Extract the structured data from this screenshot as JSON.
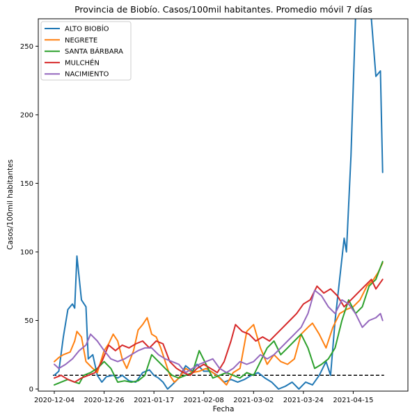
{
  "chart_data": {
    "type": "line",
    "title": "Provincia de Biobío. Casos/100mil habitantes. Promedio móvil 7 días",
    "xlabel": "Fecha",
    "ylabel": "Casos/100mil habitantes",
    "xlim": [
      "2020-12-04",
      "2021-05-03"
    ],
    "ylim": [
      0,
      270
    ],
    "x_ticks": [
      "2020-12-04",
      "2020-12-26",
      "2021-01-17",
      "2021-02-08",
      "2021-03-02",
      "2021-03-24",
      "2021-04-15"
    ],
    "y_ticks": [
      0,
      50,
      100,
      150,
      200,
      250
    ],
    "grid": false,
    "legend_position": "top-left",
    "reference_line": {
      "y": 10,
      "style": "dashed",
      "color": "#000000"
    },
    "series": [
      {
        "name": "ALTO BIOBÍO",
        "color": "#1f77b4",
        "points": [
          [
            "2020-12-04",
            10
          ],
          [
            "2020-12-06",
            13
          ],
          [
            "2020-12-08",
            38
          ],
          [
            "2020-12-10",
            58
          ],
          [
            "2020-12-12",
            62
          ],
          [
            "2020-12-13",
            59
          ],
          [
            "2020-12-14",
            97
          ],
          [
            "2020-12-16",
            65
          ],
          [
            "2020-12-18",
            60
          ],
          [
            "2020-12-19",
            22
          ],
          [
            "2020-12-21",
            25
          ],
          [
            "2020-12-23",
            10
          ],
          [
            "2020-12-25",
            5
          ],
          [
            "2020-12-27",
            9
          ],
          [
            "2020-12-30",
            10
          ],
          [
            "2021-01-01",
            8
          ],
          [
            "2021-01-03",
            10
          ],
          [
            "2021-01-06",
            6
          ],
          [
            "2021-01-09",
            5
          ],
          [
            "2021-01-12",
            12
          ],
          [
            "2021-01-15",
            14
          ],
          [
            "2021-01-17",
            10
          ],
          [
            "2021-01-19",
            8
          ],
          [
            "2021-01-21",
            5
          ],
          [
            "2021-01-23",
            0
          ],
          [
            "2021-01-25",
            3
          ],
          [
            "2021-01-28",
            8
          ],
          [
            "2021-01-31",
            17
          ],
          [
            "2021-02-03",
            13
          ],
          [
            "2021-02-05",
            18
          ],
          [
            "2021-02-08",
            13
          ],
          [
            "2021-02-11",
            13
          ],
          [
            "2021-02-14",
            10
          ],
          [
            "2021-02-17",
            5
          ],
          [
            "2021-02-20",
            7
          ],
          [
            "2021-02-23",
            5
          ],
          [
            "2021-02-26",
            7
          ],
          [
            "2021-03-01",
            10
          ],
          [
            "2021-03-04",
            12
          ],
          [
            "2021-03-07",
            8
          ],
          [
            "2021-03-10",
            5
          ],
          [
            "2021-03-13",
            0
          ],
          [
            "2021-03-16",
            2
          ],
          [
            "2021-03-19",
            5
          ],
          [
            "2021-03-22",
            0
          ],
          [
            "2021-03-25",
            5
          ],
          [
            "2021-03-28",
            3
          ],
          [
            "2021-03-31",
            10
          ],
          [
            "2021-04-03",
            20
          ],
          [
            "2021-04-05",
            10
          ],
          [
            "2021-04-07",
            50
          ],
          [
            "2021-04-09",
            80
          ],
          [
            "2021-04-11",
            110
          ],
          [
            "2021-04-12",
            100
          ],
          [
            "2021-04-14",
            170
          ],
          [
            "2021-04-16",
            270
          ],
          [
            "2021-04-20",
            275
          ],
          [
            "2021-04-23",
            270
          ],
          [
            "2021-04-25",
            228
          ],
          [
            "2021-04-27",
            232
          ],
          [
            "2021-04-28",
            158
          ]
        ]
      },
      {
        "name": "NEGRETE",
        "color": "#ff7f0e",
        "points": [
          [
            "2020-12-04",
            20
          ],
          [
            "2020-12-06",
            23
          ],
          [
            "2020-12-08",
            25
          ],
          [
            "2020-12-11",
            27
          ],
          [
            "2020-12-13",
            35
          ],
          [
            "2020-12-14",
            42
          ],
          [
            "2020-12-16",
            38
          ],
          [
            "2020-12-18",
            20
          ],
          [
            "2020-12-21",
            15
          ],
          [
            "2020-12-23",
            12
          ],
          [
            "2020-12-26",
            28
          ],
          [
            "2020-12-28",
            33
          ],
          [
            "2020-12-30",
            40
          ],
          [
            "2021-01-01",
            35
          ],
          [
            "2021-01-03",
            22
          ],
          [
            "2021-01-05",
            15
          ],
          [
            "2021-01-08",
            28
          ],
          [
            "2021-01-10",
            43
          ],
          [
            "2021-01-12",
            47
          ],
          [
            "2021-01-14",
            52
          ],
          [
            "2021-01-16",
            40
          ],
          [
            "2021-01-18",
            38
          ],
          [
            "2021-01-20",
            30
          ],
          [
            "2021-01-22",
            20
          ],
          [
            "2021-01-24",
            10
          ],
          [
            "2021-01-26",
            5
          ],
          [
            "2021-01-28",
            8
          ],
          [
            "2021-01-31",
            15
          ],
          [
            "2021-02-03",
            12
          ],
          [
            "2021-02-06",
            13
          ],
          [
            "2021-02-09",
            15
          ],
          [
            "2021-02-12",
            12
          ],
          [
            "2021-02-15",
            8
          ],
          [
            "2021-02-18",
            3
          ],
          [
            "2021-02-21",
            12
          ],
          [
            "2021-02-24",
            15
          ],
          [
            "2021-02-27",
            42
          ],
          [
            "2021-03-02",
            47
          ],
          [
            "2021-03-05",
            30
          ],
          [
            "2021-03-08",
            18
          ],
          [
            "2021-03-11",
            25
          ],
          [
            "2021-03-14",
            20
          ],
          [
            "2021-03-17",
            18
          ],
          [
            "2021-03-20",
            22
          ],
          [
            "2021-03-23",
            40
          ],
          [
            "2021-03-26",
            45
          ],
          [
            "2021-03-28",
            48
          ],
          [
            "2021-03-31",
            40
          ],
          [
            "2021-04-03",
            30
          ],
          [
            "2021-04-06",
            45
          ],
          [
            "2021-04-09",
            55
          ],
          [
            "2021-04-12",
            58
          ],
          [
            "2021-04-15",
            60
          ],
          [
            "2021-04-18",
            65
          ],
          [
            "2021-04-21",
            75
          ],
          [
            "2021-04-24",
            80
          ],
          [
            "2021-04-26",
            85
          ],
          [
            "2021-04-28",
            92
          ]
        ]
      },
      {
        "name": "SANTA BÁRBARA",
        "color": "#2ca02c",
        "points": [
          [
            "2020-12-04",
            3
          ],
          [
            "2020-12-07",
            5
          ],
          [
            "2020-12-10",
            7
          ],
          [
            "2020-12-13",
            5
          ],
          [
            "2020-12-15",
            4
          ],
          [
            "2020-12-17",
            10
          ],
          [
            "2020-12-20",
            12
          ],
          [
            "2020-12-23",
            15
          ],
          [
            "2020-12-26",
            20
          ],
          [
            "2020-12-29",
            15
          ],
          [
            "2021-01-01",
            5
          ],
          [
            "2021-01-04",
            6
          ],
          [
            "2021-01-07",
            5
          ],
          [
            "2021-01-10",
            6
          ],
          [
            "2021-01-13",
            10
          ],
          [
            "2021-01-16",
            25
          ],
          [
            "2021-01-19",
            20
          ],
          [
            "2021-01-22",
            15
          ],
          [
            "2021-01-25",
            10
          ],
          [
            "2021-01-28",
            8
          ],
          [
            "2021-01-31",
            10
          ],
          [
            "2021-02-03",
            12
          ],
          [
            "2021-02-06",
            28
          ],
          [
            "2021-02-09",
            18
          ],
          [
            "2021-02-12",
            8
          ],
          [
            "2021-02-15",
            10
          ],
          [
            "2021-02-18",
            12
          ],
          [
            "2021-02-21",
            10
          ],
          [
            "2021-02-24",
            8
          ],
          [
            "2021-02-27",
            12
          ],
          [
            "2021-03-02",
            10
          ],
          [
            "2021-03-05",
            20
          ],
          [
            "2021-03-08",
            30
          ],
          [
            "2021-03-11",
            35
          ],
          [
            "2021-03-14",
            25
          ],
          [
            "2021-03-17",
            30
          ],
          [
            "2021-03-20",
            35
          ],
          [
            "2021-03-23",
            40
          ],
          [
            "2021-03-26",
            30
          ],
          [
            "2021-03-29",
            15
          ],
          [
            "2021-04-01",
            18
          ],
          [
            "2021-04-04",
            22
          ],
          [
            "2021-04-07",
            30
          ],
          [
            "2021-04-10",
            50
          ],
          [
            "2021-04-13",
            65
          ],
          [
            "2021-04-16",
            55
          ],
          [
            "2021-04-19",
            60
          ],
          [
            "2021-04-22",
            75
          ],
          [
            "2021-04-25",
            80
          ],
          [
            "2021-04-28",
            93
          ]
        ]
      },
      {
        "name": "MULCHÉN",
        "color": "#d62728",
        "points": [
          [
            "2020-12-04",
            8
          ],
          [
            "2020-12-07",
            10
          ],
          [
            "2020-12-10",
            7
          ],
          [
            "2020-12-13",
            5
          ],
          [
            "2020-12-16",
            8
          ],
          [
            "2020-12-19",
            10
          ],
          [
            "2020-12-22",
            12
          ],
          [
            "2020-12-25",
            20
          ],
          [
            "2020-12-28",
            32
          ],
          [
            "2020-12-31",
            28
          ],
          [
            "2021-01-03",
            32
          ],
          [
            "2021-01-06",
            30
          ],
          [
            "2021-01-09",
            33
          ],
          [
            "2021-01-12",
            35
          ],
          [
            "2021-01-15",
            30
          ],
          [
            "2021-01-18",
            35
          ],
          [
            "2021-01-21",
            33
          ],
          [
            "2021-01-24",
            20
          ],
          [
            "2021-01-27",
            15
          ],
          [
            "2021-01-30",
            12
          ],
          [
            "2021-02-02",
            10
          ],
          [
            "2021-02-05",
            15
          ],
          [
            "2021-02-08",
            18
          ],
          [
            "2021-02-11",
            15
          ],
          [
            "2021-02-14",
            12
          ],
          [
            "2021-02-17",
            20
          ],
          [
            "2021-02-20",
            35
          ],
          [
            "2021-02-22",
            47
          ],
          [
            "2021-02-25",
            42
          ],
          [
            "2021-02-28",
            40
          ],
          [
            "2021-03-03",
            35
          ],
          [
            "2021-03-06",
            38
          ],
          [
            "2021-03-09",
            35
          ],
          [
            "2021-03-12",
            40
          ],
          [
            "2021-03-15",
            45
          ],
          [
            "2021-03-18",
            50
          ],
          [
            "2021-03-21",
            55
          ],
          [
            "2021-03-24",
            62
          ],
          [
            "2021-03-27",
            65
          ],
          [
            "2021-03-30",
            75
          ],
          [
            "2021-04-02",
            70
          ],
          [
            "2021-04-05",
            73
          ],
          [
            "2021-04-08",
            68
          ],
          [
            "2021-04-11",
            60
          ],
          [
            "2021-04-14",
            65
          ],
          [
            "2021-04-17",
            70
          ],
          [
            "2021-04-20",
            75
          ],
          [
            "2021-04-23",
            80
          ],
          [
            "2021-04-25",
            73
          ],
          [
            "2021-04-28",
            80
          ]
        ]
      },
      {
        "name": "NACIMIENTO",
        "color": "#9467bd",
        "points": [
          [
            "2020-12-04",
            18
          ],
          [
            "2020-12-06",
            15
          ],
          [
            "2020-12-09",
            18
          ],
          [
            "2020-12-12",
            22
          ],
          [
            "2020-12-15",
            28
          ],
          [
            "2020-12-18",
            32
          ],
          [
            "2020-12-20",
            40
          ],
          [
            "2020-12-23",
            35
          ],
          [
            "2020-12-26",
            28
          ],
          [
            "2020-12-29",
            22
          ],
          [
            "2021-01-01",
            20
          ],
          [
            "2021-01-04",
            22
          ],
          [
            "2021-01-07",
            25
          ],
          [
            "2021-01-10",
            28
          ],
          [
            "2021-01-13",
            30
          ],
          [
            "2021-01-16",
            30
          ],
          [
            "2021-01-19",
            25
          ],
          [
            "2021-01-22",
            22
          ],
          [
            "2021-01-25",
            20
          ],
          [
            "2021-01-28",
            18
          ],
          [
            "2021-01-31",
            12
          ],
          [
            "2021-02-03",
            15
          ],
          [
            "2021-02-06",
            18
          ],
          [
            "2021-02-09",
            20
          ],
          [
            "2021-02-12",
            22
          ],
          [
            "2021-02-15",
            15
          ],
          [
            "2021-02-18",
            12
          ],
          [
            "2021-02-21",
            15
          ],
          [
            "2021-02-24",
            20
          ],
          [
            "2021-02-27",
            18
          ],
          [
            "2021-03-02",
            20
          ],
          [
            "2021-03-05",
            25
          ],
          [
            "2021-03-08",
            22
          ],
          [
            "2021-03-11",
            25
          ],
          [
            "2021-03-14",
            30
          ],
          [
            "2021-03-17",
            35
          ],
          [
            "2021-03-20",
            40
          ],
          [
            "2021-03-23",
            45
          ],
          [
            "2021-03-26",
            55
          ],
          [
            "2021-03-29",
            72
          ],
          [
            "2021-04-01",
            68
          ],
          [
            "2021-04-04",
            60
          ],
          [
            "2021-04-07",
            55
          ],
          [
            "2021-04-10",
            65
          ],
          [
            "2021-04-13",
            62
          ],
          [
            "2021-04-16",
            55
          ],
          [
            "2021-04-19",
            45
          ],
          [
            "2021-04-22",
            50
          ],
          [
            "2021-04-25",
            52
          ],
          [
            "2021-04-27",
            55
          ],
          [
            "2021-04-28",
            50
          ]
        ]
      }
    ]
  }
}
